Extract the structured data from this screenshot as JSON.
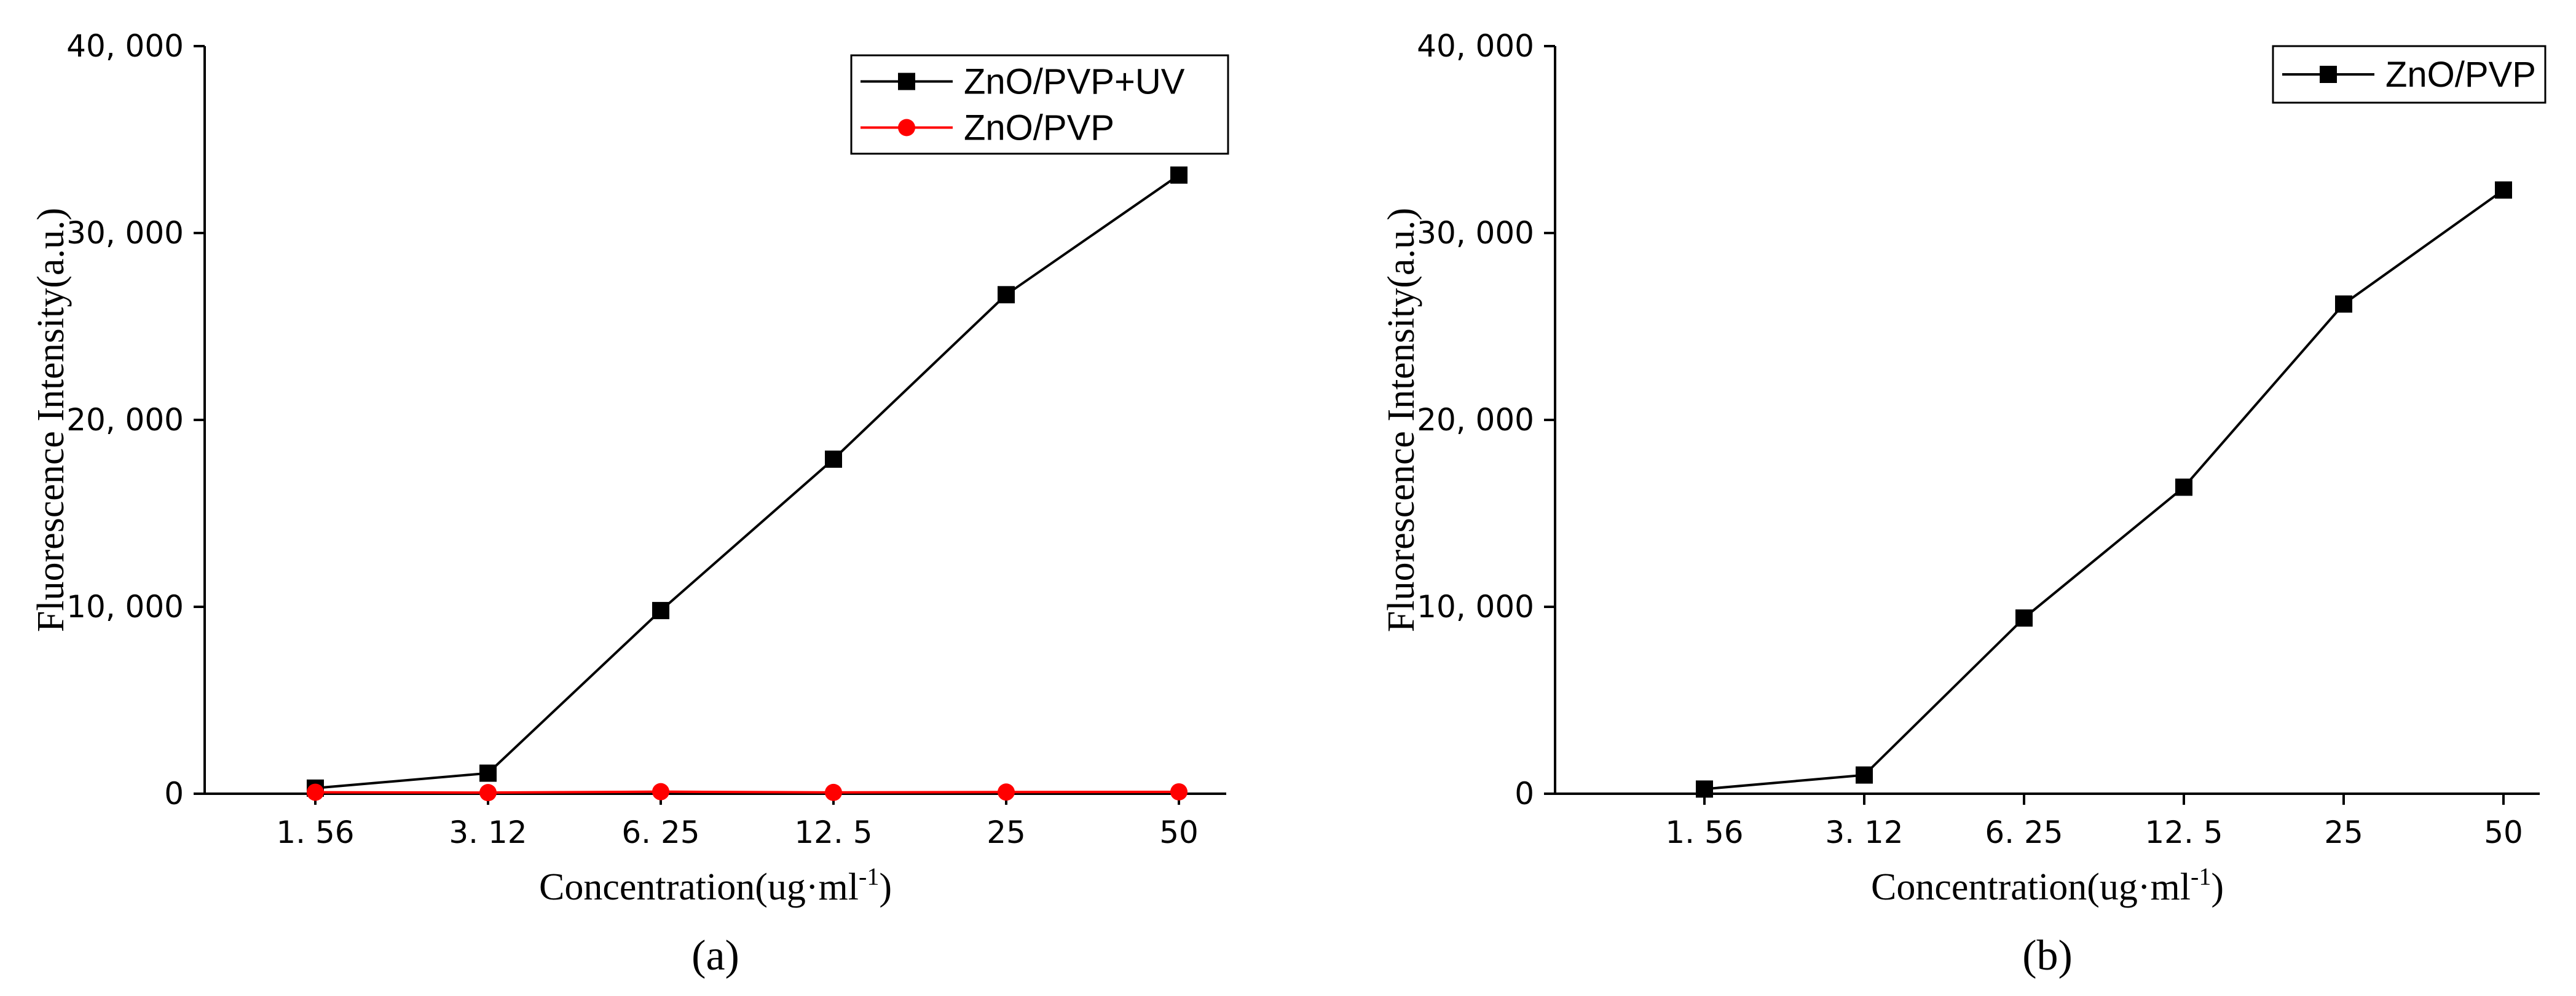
{
  "chart_data": [
    {
      "type": "line",
      "panel_label": "(a)",
      "categories": [
        "1. 56",
        "3. 12",
        "6. 25",
        "12. 5",
        "25",
        "50"
      ],
      "xlabel": "Concentration(ug·ml",
      "xlabel_sup": "-1",
      "xlabel_close": ")",
      "ylabel": "Fluorescence Intensity(a.u.)",
      "ylim": [
        0,
        40000
      ],
      "yticks": [
        0,
        10000,
        20000,
        30000,
        40000
      ],
      "ytick_labels": [
        "0",
        "10, 000",
        "20, 000",
        "30, 000",
        "40, 000"
      ],
      "grid": false,
      "legend_position": "top-right",
      "series": [
        {
          "name": "ZnO/PVP+UV",
          "marker": "square",
          "color": "#000000",
          "values": [
            300,
            1100,
            9800,
            17900,
            26700,
            33100
          ]
        },
        {
          "name": "ZnO/PVP",
          "marker": "circle",
          "color": "#ff0000",
          "values": [
            80,
            60,
            110,
            70,
            90,
            100
          ]
        }
      ]
    },
    {
      "type": "line",
      "panel_label": "(b)",
      "categories": [
        "1. 56",
        "3. 12",
        "6. 25",
        "12. 5",
        "25",
        "50"
      ],
      "xlabel": "Concentration(ug·ml",
      "xlabel_sup": "-1",
      "xlabel_close": ")",
      "ylabel": "Fluorescence Intensity(a.u.)",
      "ylim": [
        0,
        40000
      ],
      "yticks": [
        0,
        10000,
        20000,
        30000,
        40000
      ],
      "ytick_labels": [
        "0",
        "10, 000",
        "20, 000",
        "30, 000",
        "40, 000"
      ],
      "grid": false,
      "legend_position": "top-right",
      "series": [
        {
          "name": "ZnO/PVP",
          "marker": "square",
          "color": "#000000",
          "values": [
            250,
            1000,
            9400,
            16400,
            26200,
            32300
          ]
        }
      ]
    }
  ]
}
